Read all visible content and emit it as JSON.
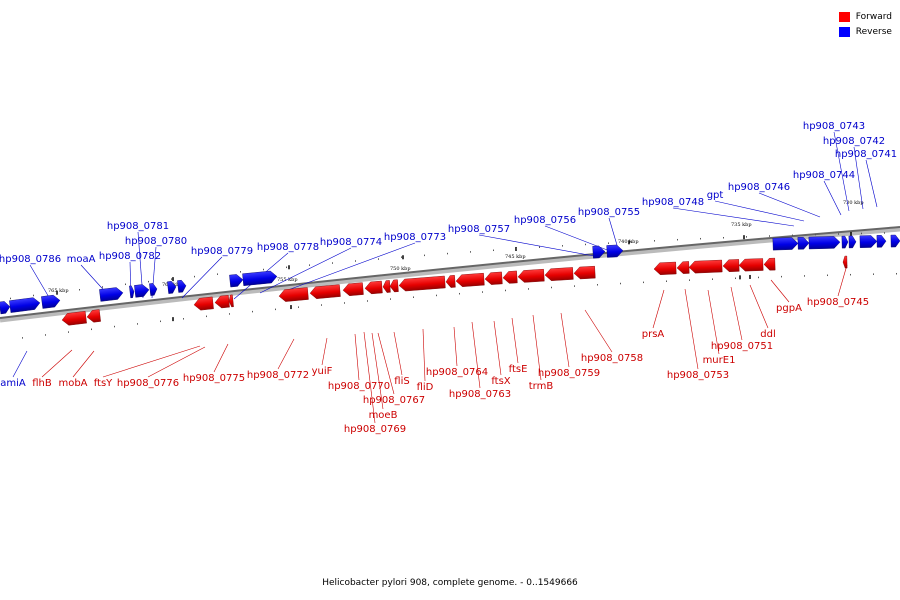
{
  "legend": {
    "forward_label": "Forward",
    "reverse_label": "Reverse",
    "forward_color": "#ff0000",
    "reverse_color": "#0000ff"
  },
  "caption": "Helicobacter pylori 908, complete genome. - 0..1549666",
  "ruler": [
    "765 kbp",
    "760 kbp",
    "755 kbp",
    "750 kbp",
    "745 kbp",
    "740 kbp",
    "735 kbp",
    "730 kbp"
  ],
  "forward_genes": [
    "flhB",
    "mobA",
    "ftsY",
    "hp908_0776",
    "hp908_0775",
    "hp908_0772",
    "yuiF",
    "hp908_0770",
    "hp908_0767",
    "moeB",
    "hp908_0769",
    "fliS",
    "fliD",
    "hp908_0764",
    "hp908_0763",
    "ftsX",
    "ftsE",
    "trmB",
    "hp908_0759",
    "hp908_0758",
    "prsA",
    "hp908_0753",
    "murE1",
    "hp908_0751",
    "ddl",
    "pgpA",
    "hp908_0745"
  ],
  "reverse_genes": [
    "amiA",
    "hp908_0786",
    "moaA",
    "hp908_0782",
    "hp908_0781",
    "hp908_0780",
    "hp908_0779",
    "hp908_0778",
    "hp908_0774",
    "hp908_0773",
    "hp908_0757",
    "hp908_0756",
    "hp908_0755",
    "hp908_0748",
    "gpt",
    "hp908_0746",
    "hp908_0744",
    "hp908_0743",
    "hp908_0742",
    "hp908_0741"
  ]
}
